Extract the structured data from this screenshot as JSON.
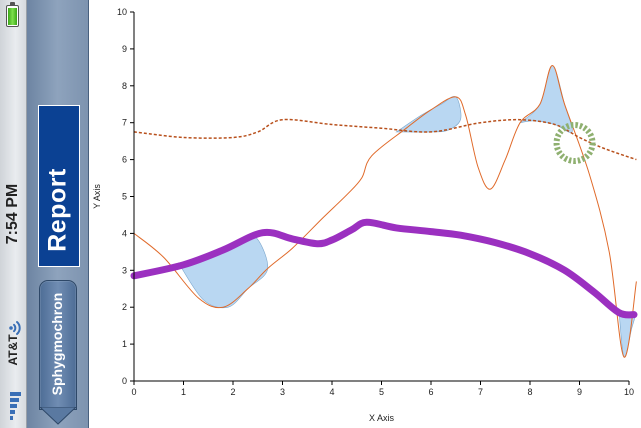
{
  "status_bar": {
    "carrier": "AT&T",
    "time": "7:54 PM",
    "icons": [
      "signal-bars-icon",
      "wifi-icon",
      "battery-icon"
    ],
    "battery_level": 0.95
  },
  "nav": {
    "title": "Report",
    "back_button_label": "Sphygmochron",
    "title_bg": "#0b4193",
    "bar_color": "#7d93af"
  },
  "chart_data": {
    "type": "line",
    "xlabel": "X Axis",
    "ylabel": "Y Axis",
    "xlim": [
      0,
      10
    ],
    "ylim": [
      0,
      10
    ],
    "xticks": [
      "0",
      "1",
      "2",
      "3",
      "4",
      "5",
      "6",
      "7",
      "8",
      "9",
      "10"
    ],
    "yticks": [
      "0",
      "1",
      "2",
      "3",
      "4",
      "5",
      "6",
      "7",
      "8",
      "9",
      "10"
    ],
    "grid": false,
    "colors": {
      "thin": "#e06a2a",
      "dashed": "#b8501c",
      "thick": "#9b30c0",
      "fill": "#b9d7f2",
      "fill_stroke": "#7aa6cc",
      "circle": "#8fb070"
    },
    "series": [
      {
        "style": "thin",
        "points": [
          [
            0,
            4.0
          ],
          [
            0.6,
            3.35
          ],
          [
            1.3,
            2.25
          ],
          [
            1.8,
            2.0
          ],
          [
            2.3,
            2.5
          ],
          [
            2.7,
            3.05
          ],
          [
            3.2,
            3.6
          ],
          [
            3.8,
            4.4
          ],
          [
            4.3,
            5.05
          ],
          [
            4.6,
            5.5
          ],
          [
            4.8,
            6.1
          ],
          [
            5.5,
            6.85
          ],
          [
            6.0,
            7.35
          ],
          [
            6.5,
            7.7
          ],
          [
            6.7,
            7.2
          ],
          [
            6.95,
            5.8
          ],
          [
            7.2,
            5.2
          ],
          [
            7.5,
            6.0
          ],
          [
            7.8,
            7.0
          ],
          [
            8.2,
            7.5
          ],
          [
            8.45,
            8.55
          ],
          [
            8.7,
            7.5
          ],
          [
            9.2,
            5.6
          ],
          [
            9.6,
            3.5
          ],
          [
            9.9,
            0.65
          ],
          [
            10.15,
            2.7
          ]
        ]
      },
      {
        "style": "dashed",
        "points": [
          [
            0,
            6.75
          ],
          [
            1.0,
            6.6
          ],
          [
            2.0,
            6.6
          ],
          [
            2.5,
            6.75
          ],
          [
            3.0,
            7.08
          ],
          [
            4.0,
            6.95
          ],
          [
            5.0,
            6.85
          ],
          [
            6.0,
            6.75
          ],
          [
            7.0,
            7.0
          ],
          [
            7.8,
            7.08
          ],
          [
            8.5,
            6.95
          ],
          [
            9.0,
            6.6
          ],
          [
            9.5,
            6.3
          ],
          [
            10.15,
            6.0
          ]
        ]
      },
      {
        "style": "thick",
        "points": [
          [
            0,
            2.85
          ],
          [
            1.0,
            3.15
          ],
          [
            1.8,
            3.55
          ],
          [
            2.6,
            4.02
          ],
          [
            3.2,
            3.85
          ],
          [
            3.7,
            3.72
          ],
          [
            4.0,
            3.82
          ],
          [
            4.4,
            4.1
          ],
          [
            4.7,
            4.3
          ],
          [
            5.3,
            4.15
          ],
          [
            6.0,
            4.05
          ],
          [
            6.6,
            3.95
          ],
          [
            7.3,
            3.75
          ],
          [
            8.0,
            3.45
          ],
          [
            8.7,
            3.0
          ],
          [
            9.3,
            2.4
          ],
          [
            9.8,
            1.85
          ],
          [
            10.1,
            1.8
          ]
        ]
      }
    ],
    "shaded_regions": [
      [
        [
          0.9,
          3.2
        ],
        [
          1.4,
          2.2
        ],
        [
          1.9,
          2.0
        ],
        [
          2.3,
          2.5
        ],
        [
          2.7,
          3.05
        ],
        [
          2.4,
          3.95
        ],
        [
          1.8,
          3.55
        ],
        [
          1.3,
          3.3
        ]
      ],
      [
        [
          5.3,
          6.75
        ],
        [
          5.8,
          7.2
        ],
        [
          6.2,
          7.5
        ],
        [
          6.5,
          7.7
        ],
        [
          6.6,
          7.1
        ],
        [
          6.35,
          6.8
        ],
        [
          6.0,
          6.75
        ]
      ],
      [
        [
          7.8,
          7.0
        ],
        [
          8.2,
          7.5
        ],
        [
          8.45,
          8.55
        ],
        [
          8.7,
          7.5
        ],
        [
          8.85,
          6.75
        ],
        [
          8.5,
          6.95
        ],
        [
          8.1,
          7.05
        ]
      ],
      [
        [
          9.8,
          1.85
        ],
        [
          9.9,
          0.65
        ],
        [
          10.05,
          1.4
        ],
        [
          10.1,
          1.8
        ]
      ]
    ],
    "circle_marker": {
      "x": 8.9,
      "y": 6.45
    }
  }
}
